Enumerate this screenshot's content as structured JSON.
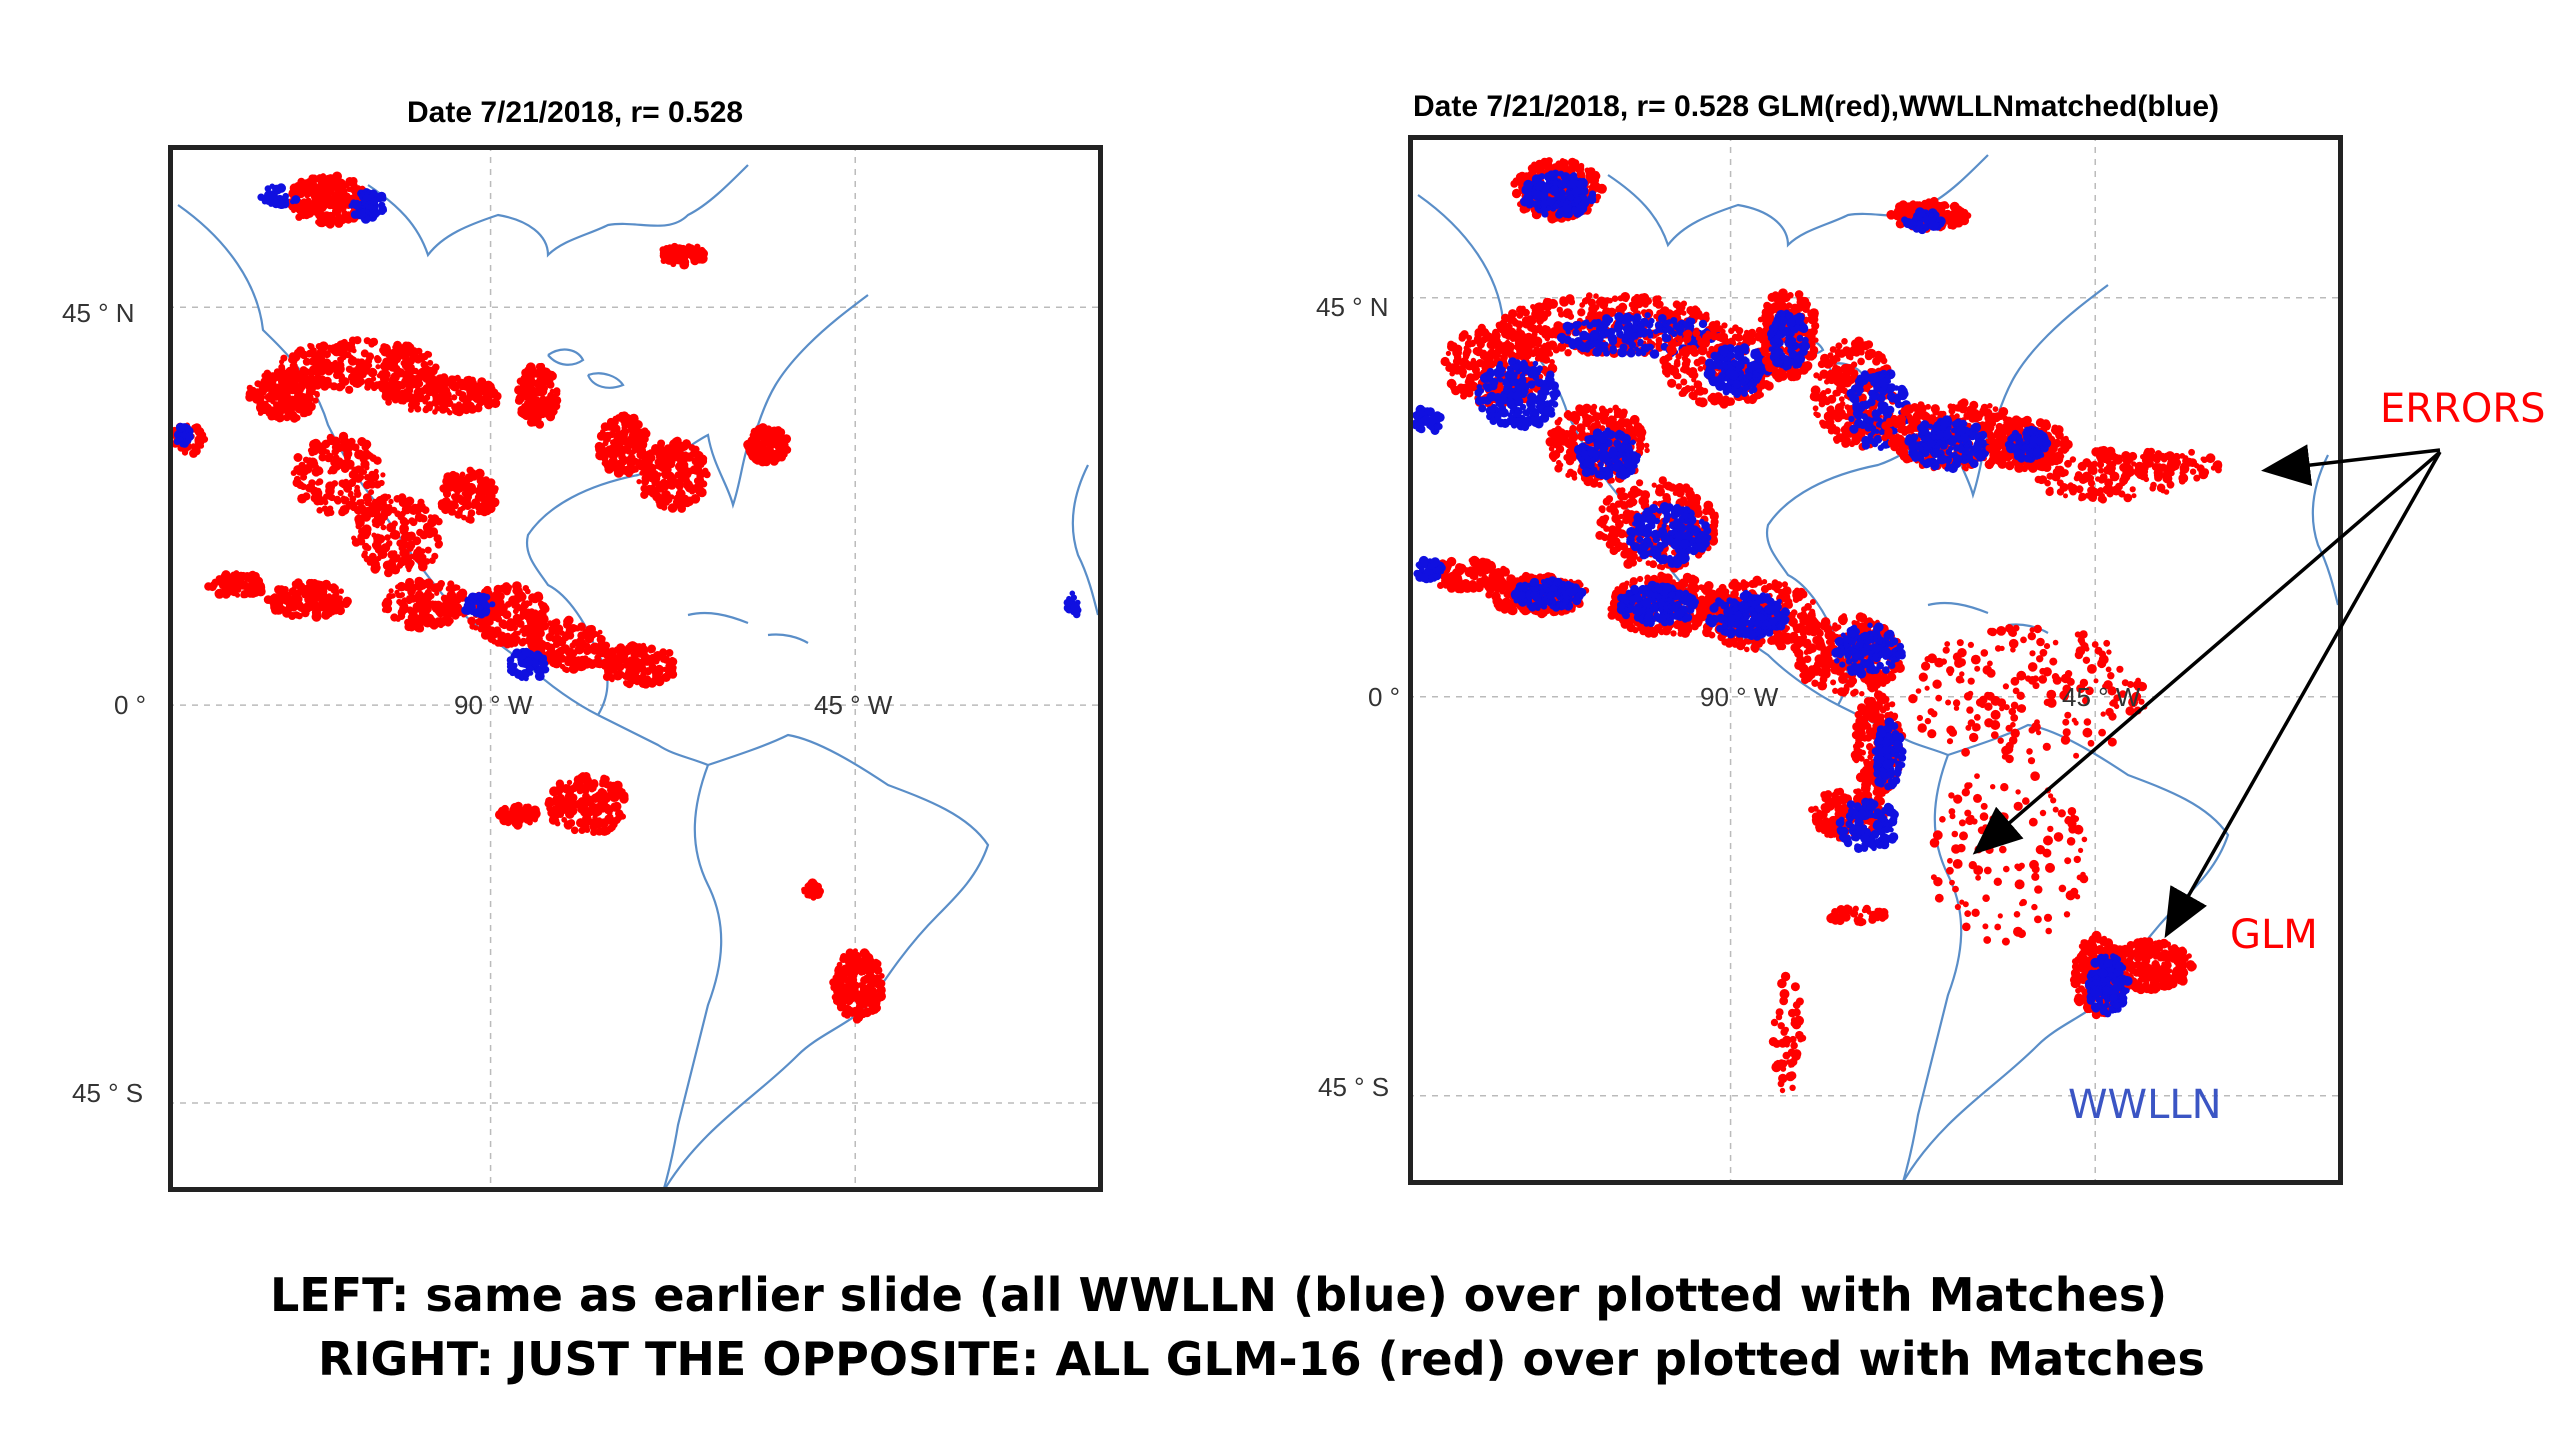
{
  "left_panel": {
    "title": "Date 7/21/2018,  r= 0.528",
    "ticks": {
      "lat_n": "45 ° N",
      "lat_0": "0 °",
      "lat_s": "45 ° S",
      "lon_90": "90 ° W",
      "lon_45": "45 ° W"
    }
  },
  "right_panel": {
    "title": "Date 7/21/2018,  r= 0.528  GLM(red),WWLLNmatched(blue)",
    "ticks": {
      "lat_n": "45 ° N",
      "lat_0": "0 °",
      "lat_s": "45 ° S",
      "lon_90": "90 ° W",
      "lon_45": "45 ° W"
    }
  },
  "annotations": {
    "errors": "ERRORS",
    "glm": "GLM",
    "wwlln": "WWLLN"
  },
  "captions": {
    "line1": "LEFT: same as earlier slide (all WWLLN (blue) over plotted with Matches)",
    "line2": "RIGHT:  JUST THE OPPOSITE:  ALL GLM-16 (red) over plotted with Matches"
  },
  "colors": {
    "glm": "#ff0000",
    "wwlln": "#1010e0",
    "coast": "#5a8ec8",
    "annot_wwlln": "#3b55c4",
    "annot_red": "#ff0000"
  }
}
